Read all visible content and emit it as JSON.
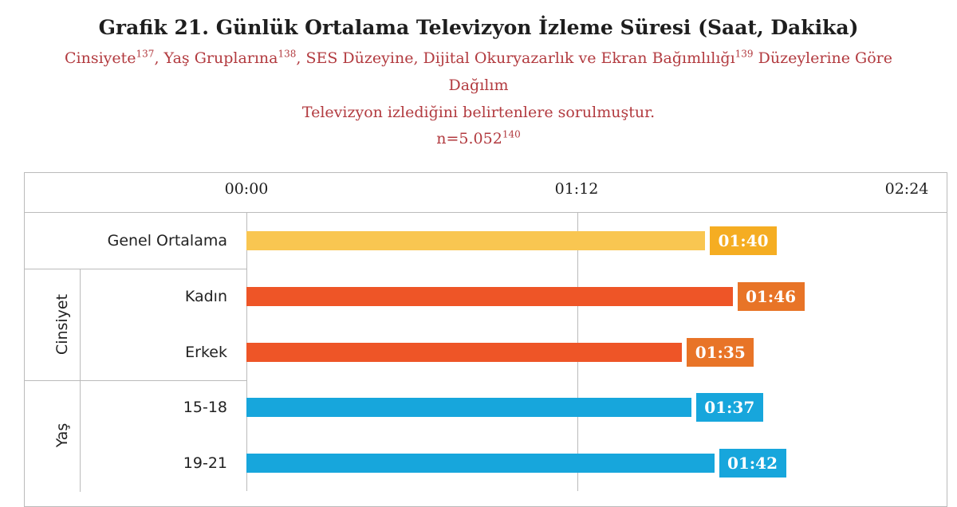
{
  "title": "Grafik 21. Günlük Ortalama Televizyon İzleme Süresi (Saat, Dakika)",
  "subtitle": {
    "line1_a": "Cinsiyete",
    "line1_a_note": "137",
    "line1_b": ", Yaş Gruplarına",
    "line1_b_note": "138",
    "line1_c": ", SES Düzeyine, Dijital Okuryazarlık ve Ekran Bağımlılığı",
    "line1_c_note": "139",
    "line1_d": " Düzeylerine Göre",
    "line2": "Dağılım",
    "line3": "Televizyon izlediğini belirtenlere sorulmuştur.",
    "line4": "n=5.052",
    "line4_note": "140"
  },
  "chart_data": {
    "type": "bar",
    "orientation": "horizontal",
    "xlim_minutes": [
      0,
      144
    ],
    "ticks": [
      {
        "minutes": 0,
        "label": "00:00"
      },
      {
        "minutes": 72,
        "label": "01:12"
      },
      {
        "minutes": 144,
        "label": "02:24"
      }
    ],
    "groups": [
      {
        "label": "",
        "rows": [
          0
        ]
      },
      {
        "label": "Cinsiyet",
        "rows": [
          1,
          2
        ]
      },
      {
        "label": "Yaş",
        "rows": [
          3,
          4
        ]
      }
    ],
    "bars": [
      {
        "category": "Genel Ortalama",
        "minutes": 100,
        "label": "01:40",
        "color": "#f9c651",
        "label_color": "#f5ad22"
      },
      {
        "category": "Kadın",
        "minutes": 106,
        "label": "01:46",
        "color": "#ee5527",
        "label_color": "#e87427"
      },
      {
        "category": "Erkek",
        "minutes": 95,
        "label": "01:35",
        "color": "#ee5527",
        "label_color": "#e87427"
      },
      {
        "category": "15-18",
        "minutes": 97,
        "label": "01:37",
        "color": "#17a6dc",
        "label_color": "#17a6dc"
      },
      {
        "category": "19-21",
        "minutes": 102,
        "label": "01:42",
        "color": "#17a6dc",
        "label_color": "#17a6dc"
      }
    ]
  }
}
